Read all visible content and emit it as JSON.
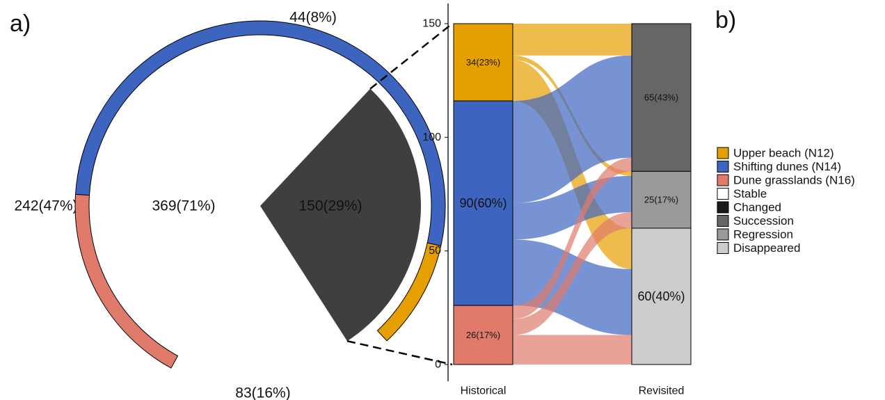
{
  "panel_a_label": "a)",
  "panel_b_label": "b)",
  "chart_data": [
    {
      "type": "pie",
      "panel": "a)",
      "inner": [
        {
          "label": "369(71%)",
          "value": 369,
          "color": "#ffffff"
        },
        {
          "label": "150(29%)",
          "value": 150,
          "color": "#3f3f3f"
        }
      ],
      "ring": [
        {
          "label": "44(8%)",
          "value": 44,
          "color": "#e69f00",
          "category": "Upper beach (N12)"
        },
        {
          "label": "242(47%)",
          "value": 242,
          "color": "#3d65c0",
          "category": "Shifting dunes (N14)"
        },
        {
          "label": "83(16%)",
          "value": 83,
          "color": "#e07b6b",
          "category": "Dune grasslands (N16)"
        }
      ]
    },
    {
      "type": "alluvial",
      "panel": "b)",
      "ylim": [
        0,
        150
      ],
      "yticks": [
        "0",
        "50",
        "100",
        "150"
      ],
      "stages": [
        "Historical",
        "Revisited"
      ],
      "historical": [
        {
          "name": "Upper beach (N12)",
          "label": "34(23%)",
          "value": 34,
          "color": "#e69f00"
        },
        {
          "name": "Shifting dunes (N14)",
          "label": "90(60%)",
          "value": 90,
          "color": "#3d65c0"
        },
        {
          "name": "Dune grasslands (N16)",
          "label": "26(17%)",
          "value": 26,
          "color": "#e07b6b"
        }
      ],
      "revisited": [
        {
          "name": "Succession",
          "label": "65(43%)",
          "value": 65,
          "color": "#666666"
        },
        {
          "name": "Regression",
          "label": "25(17%)",
          "value": 25,
          "color": "#9a9a9a"
        },
        {
          "name": "Disappeared",
          "label": "60(40%)",
          "value": 60,
          "color": "#cccccc"
        }
      ],
      "flows": [
        {
          "from": "Upper beach (N12)",
          "to": "Succession",
          "value": 14
        },
        {
          "from": "Upper beach (N12)",
          "to": "Regression",
          "value": 2
        },
        {
          "from": "Upper beach (N12)",
          "to": "Disappeared",
          "value": 18
        },
        {
          "from": "Shifting dunes (N14)",
          "to": "Succession",
          "value": 45
        },
        {
          "from": "Shifting dunes (N14)",
          "to": "Regression",
          "value": 16
        },
        {
          "from": "Shifting dunes (N14)",
          "to": "Disappeared",
          "value": 29
        },
        {
          "from": "Dune grasslands (N16)",
          "to": "Succession",
          "value": 6
        },
        {
          "from": "Dune grasslands (N16)",
          "to": "Regression",
          "value": 7
        },
        {
          "from": "Dune grasslands (N16)",
          "to": "Disappeared",
          "value": 13
        }
      ]
    }
  ],
  "legend": [
    {
      "label": "Upper beach (N12)",
      "color": "#e69f00"
    },
    {
      "label": "Shifting dunes (N14)",
      "color": "#3d65c0"
    },
    {
      "label": "Dune grasslands (N16)",
      "color": "#e07b6b"
    },
    {
      "label": "Stable",
      "color": "#ffffff"
    },
    {
      "label": "Changed",
      "color": "#1a1a1a"
    },
    {
      "label": "Succession",
      "color": "#666666"
    },
    {
      "label": "Regression",
      "color": "#9a9a9a"
    },
    {
      "label": "Disappeared",
      "color": "#cccccc"
    }
  ]
}
